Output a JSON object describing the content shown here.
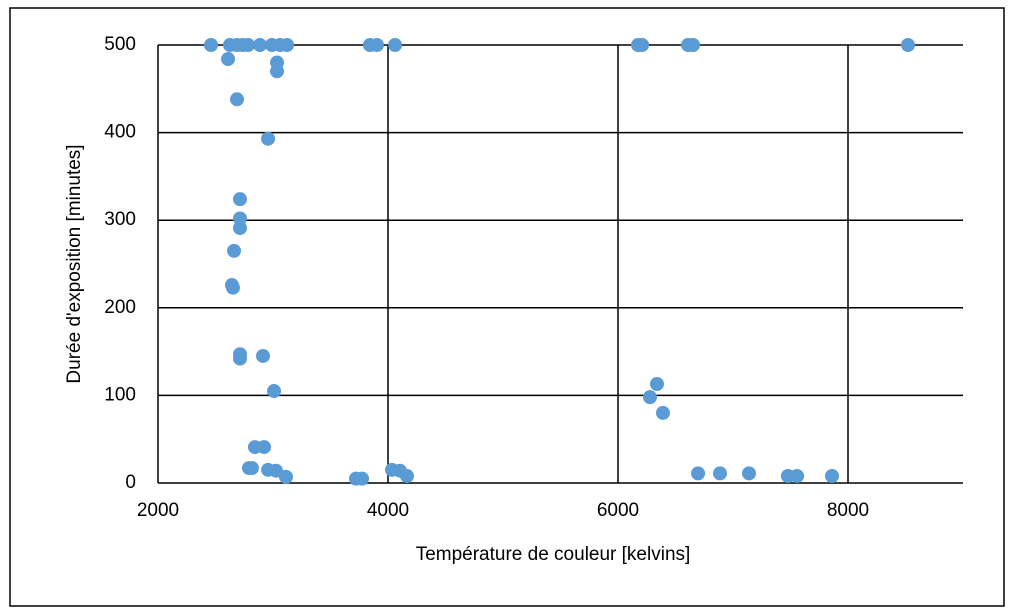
{
  "chart_data": {
    "type": "scatter",
    "xlabel": "Température  de couleur  [kelvins]",
    "ylabel": "Durée d'exposition  [minutes]",
    "color": "#5b9bd5",
    "x": [
      2461,
      2626,
      2687,
      2739,
      2783,
      2887,
      2991,
      3061,
      3122,
      3843,
      3904,
      4061,
      6174,
      6209,
      6609,
      6652,
      8522,
      2609,
      3035,
      3035,
      2687,
      2957,
      2713,
      2713,
      2713,
      2661,
      2643,
      2652,
      2713,
      2713,
      2913,
      3009,
      2843,
      2922,
      2791,
      2817,
      2957,
      3026,
      3113,
      3722,
      3774,
      4035,
      4104,
      4165,
      6278,
      6339,
      6391,
      6696,
      6887,
      7139,
      7478,
      7557,
      7861
    ],
    "values": [
      500,
      500,
      500,
      500,
      500,
      500,
      500,
      500,
      500,
      500,
      500,
      500,
      500,
      500,
      500,
      500,
      500,
      484,
      480,
      470,
      438,
      393,
      324,
      302,
      291,
      265,
      226,
      223,
      147,
      142,
      145,
      105,
      41,
      41,
      17,
      17,
      15,
      14,
      7,
      5,
      5,
      15,
      14,
      8,
      98,
      113,
      80,
      11,
      11,
      11,
      8,
      8,
      8
    ],
    "xlim": [
      2000,
      9000
    ],
    "xticks": [
      2000,
      4000,
      6000,
      8000
    ],
    "ylim": [
      0,
      500
    ],
    "yticks": [
      0,
      100,
      200,
      300,
      400,
      500
    ],
    "grid": true
  }
}
